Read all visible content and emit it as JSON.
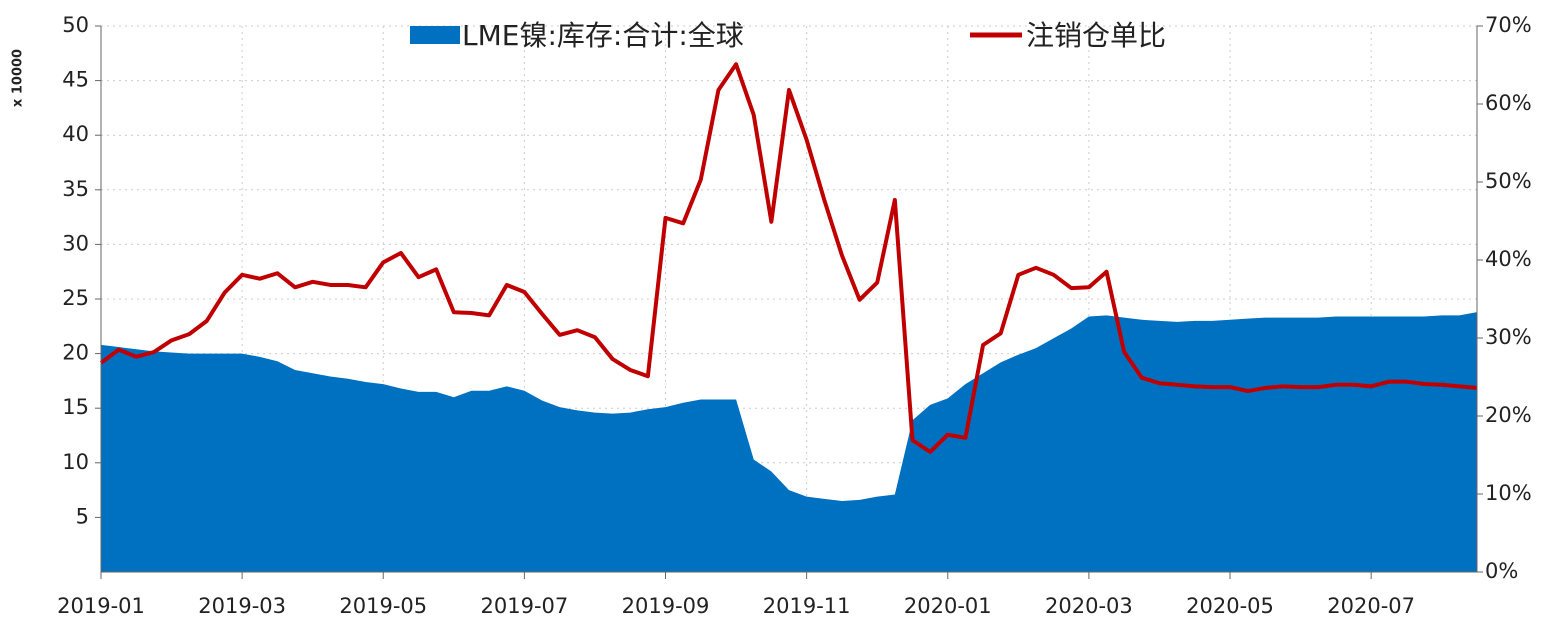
{
  "chart_data": {
    "type": "combo",
    "y_label": "x 10000",
    "categories": [
      "2019-01",
      null,
      null,
      null,
      null,
      null,
      null,
      null,
      "2019-03",
      null,
      null,
      null,
      null,
      null,
      null,
      null,
      "2019-05",
      null,
      null,
      null,
      null,
      null,
      null,
      null,
      "2019-07",
      null,
      null,
      null,
      null,
      null,
      null,
      null,
      "2019-09",
      null,
      null,
      null,
      null,
      null,
      null,
      null,
      "2019-11",
      null,
      null,
      null,
      null,
      null,
      null,
      null,
      "2020-01",
      null,
      null,
      null,
      null,
      null,
      null,
      null,
      "2020-03",
      null,
      null,
      null,
      null,
      null,
      null,
      null,
      "2020-05",
      null,
      null,
      null,
      null,
      null,
      null,
      null,
      "2020-07",
      null,
      null,
      null,
      null,
      null,
      null
    ],
    "series": [
      {
        "name": "LME镍:库存:合计:全球",
        "color": "#0070c0",
        "type": "area",
        "axis": "y",
        "values": [
          20.8,
          20.6,
          20.4,
          20.2,
          20.1,
          20.0,
          20.0,
          20.0,
          20.0,
          19.7,
          19.3,
          18.5,
          18.2,
          17.9,
          17.7,
          17.4,
          17.2,
          16.8,
          16.5,
          16.5,
          16.0,
          16.6,
          16.6,
          17.0,
          16.6,
          15.7,
          15.1,
          14.8,
          14.6,
          14.5,
          14.6,
          14.9,
          15.1,
          15.5,
          15.8,
          15.8,
          15.8,
          10.3,
          9.2,
          7.5,
          6.9,
          6.7,
          6.5,
          6.6,
          6.9,
          7.1,
          13.9,
          15.3,
          15.9,
          17.2,
          18.2,
          19.2,
          19.9,
          20.5,
          21.4,
          22.3,
          23.4,
          23.5,
          23.3,
          23.1,
          23.0,
          22.9,
          23.0,
          23.0,
          23.1,
          23.2,
          23.3,
          23.3,
          23.3,
          23.3,
          23.4,
          23.4,
          23.4,
          23.4,
          23.4,
          23.4,
          23.5,
          23.5,
          23.8
        ]
      },
      {
        "name": "注销仓单比",
        "color": "#c00000",
        "type": "line",
        "axis": "y2",
        "values": [
          26.8,
          28.5,
          27.6,
          28.2,
          29.7,
          30.5,
          32.2,
          35.8,
          38.1,
          37.6,
          38.3,
          36.5,
          37.2,
          36.8,
          36.8,
          36.5,
          39.7,
          40.9,
          37.8,
          38.8,
          33.3,
          33.2,
          32.9,
          36.8,
          35.9,
          33.1,
          30.4,
          31.0,
          30.1,
          27.3,
          25.9,
          25.1,
          45.4,
          44.7,
          50.3,
          61.8,
          65.1,
          58.6,
          44.9,
          61.8,
          55.4,
          47.7,
          40.6,
          34.9,
          37.1,
          47.7,
          16.9,
          15.4,
          17.6,
          17.2,
          29.1,
          30.6,
          38.1,
          39.0,
          38.1,
          36.4,
          36.5,
          38.5,
          28.2,
          24.9,
          24.2,
          24.0,
          23.8,
          23.7,
          23.7,
          23.2,
          23.6,
          23.8,
          23.7,
          23.7,
          24.0,
          24.0,
          23.8,
          24.4,
          24.4,
          24.1,
          24.0,
          23.8,
          23.6
        ]
      }
    ],
    "ylim": [
      0,
      50
    ],
    "yticks": [
      5,
      10,
      15,
      20,
      25,
      30,
      35,
      40,
      45,
      50
    ],
    "y2lim": [
      0,
      70
    ],
    "y2ticks": [
      {
        "value": 0,
        "label": "0%"
      },
      {
        "value": 10,
        "label": "10%"
      },
      {
        "value": 20,
        "label": "20%"
      },
      {
        "value": 30,
        "label": "30%"
      },
      {
        "value": 40,
        "label": "40%"
      },
      {
        "value": 50,
        "label": "50%"
      },
      {
        "value": 60,
        "label": "60%"
      },
      {
        "value": 70,
        "label": "70%"
      }
    ],
    "grid": true,
    "legend": "top"
  }
}
